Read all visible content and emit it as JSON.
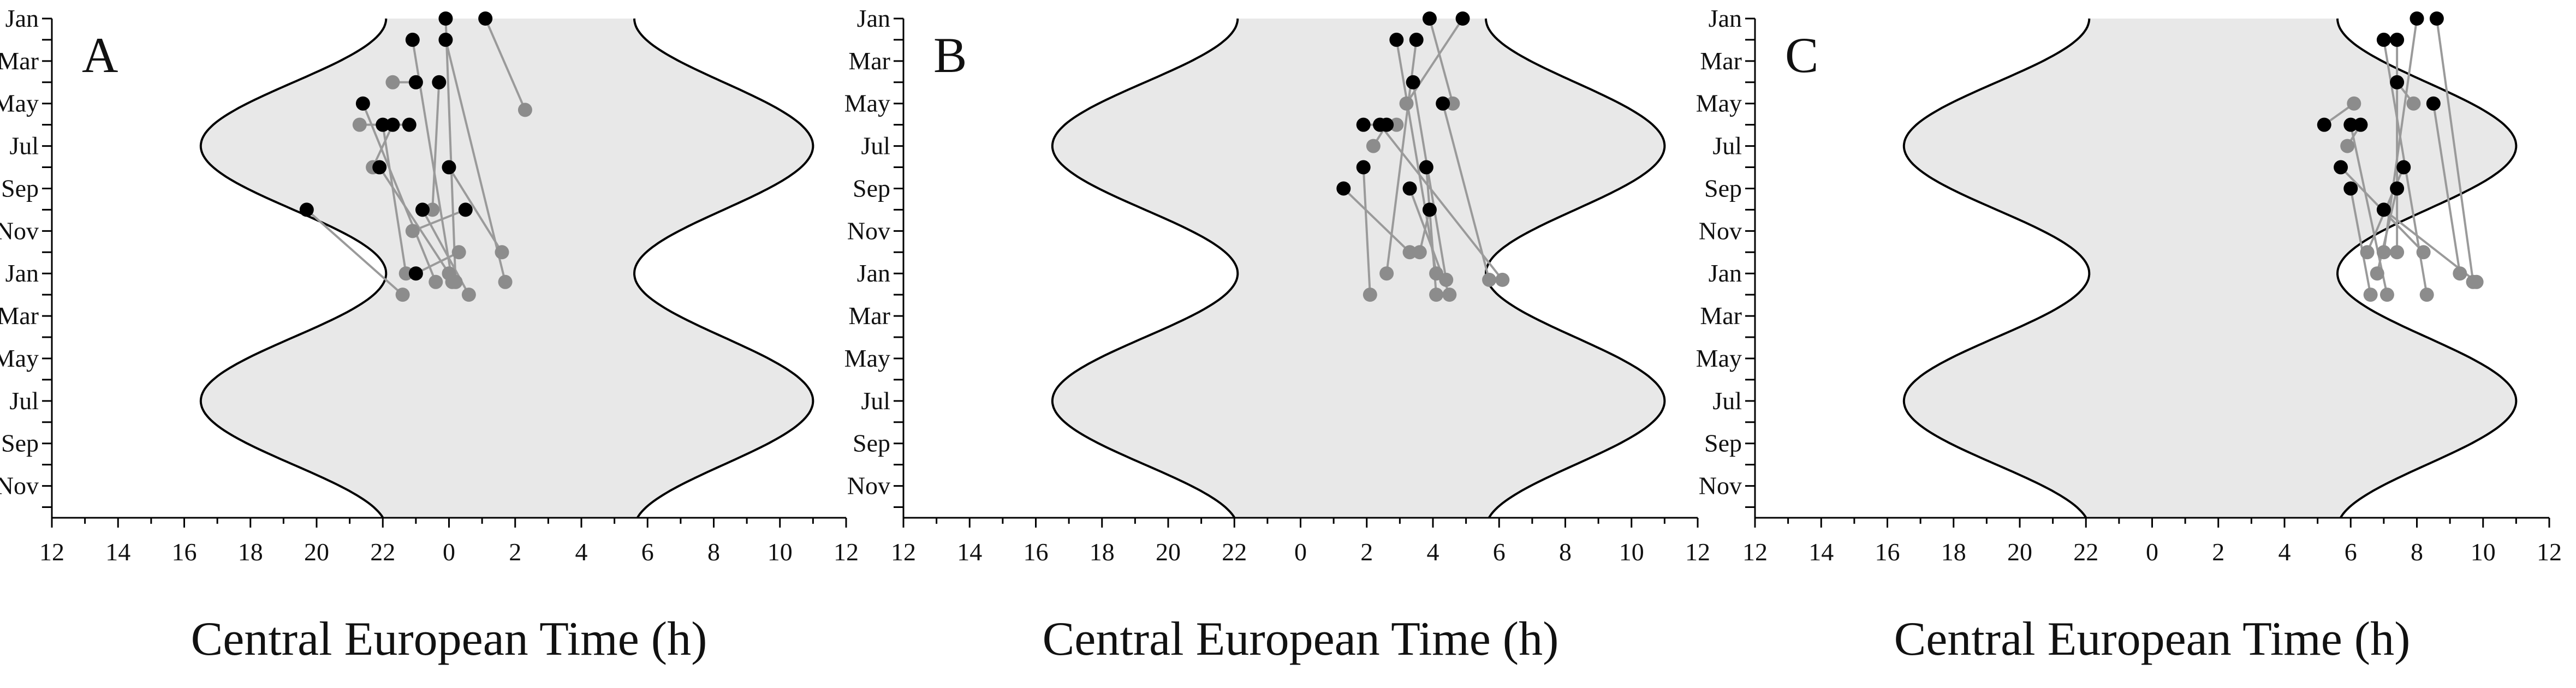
{
  "chart_data": [
    {
      "type": "scatter",
      "panel_label": "A",
      "xlabel": "Central European Time (h)",
      "x_tick_labels": [
        "12",
        "14",
        "16",
        "18",
        "20",
        "22",
        "0",
        "2",
        "4",
        "6",
        "8",
        "10",
        "12"
      ],
      "y_tick_labels": [
        "Jan",
        "Mar",
        "May",
        "Jul",
        "Sep",
        "Nov",
        "Jan",
        "Mar",
        "May",
        "Jul",
        "Sep",
        "Nov"
      ],
      "xlim": [
        12,
        36
      ],
      "ylim_months": [
        0,
        23.5
      ],
      "shading": "night (dusk to dawn) annual cycle",
      "colors": {
        "first_point": "#000000",
        "second_point": "#8c8c8c",
        "connector": "#9a9a9a",
        "night": "#e8e8e8"
      },
      "pairs": [
        {
          "from": [
            25.1,
            0
          ],
          "to": [
            26.3,
            4.3
          ]
        },
        {
          "from": [
            23.9,
            0
          ],
          "to": [
            24.2,
            12.4
          ]
        },
        {
          "from": [
            22.9,
            1.0
          ],
          "to": [
            24.1,
            12.4
          ]
        },
        {
          "from": [
            23.9,
            1.0
          ],
          "to": [
            25.7,
            12.4
          ]
        },
        {
          "from": [
            23.7,
            3.0
          ],
          "to": [
            23.5,
            9.0
          ]
        },
        {
          "from": [
            23.0,
            3.0
          ],
          "to": [
            22.3,
            3.0
          ]
        },
        {
          "from": [
            21.4,
            4.0
          ],
          "to": [
            23.6,
            12.4
          ]
        },
        {
          "from": [
            22.8,
            5.0
          ],
          "to": [
            21.3,
            5.0
          ]
        },
        {
          "from": [
            22.0,
            5.0
          ],
          "to": [
            22.7,
            12.0
          ]
        },
        {
          "from": [
            22.3,
            5.0
          ],
          "to": [
            21.7,
            7.0
          ]
        },
        {
          "from": [
            21.9,
            7.0
          ],
          "to": [
            24.0,
            12.0
          ]
        },
        {
          "from": [
            24.5,
            9.0
          ],
          "to": [
            22.9,
            10.0
          ]
        },
        {
          "from": [
            19.7,
            9.0
          ],
          "to": [
            22.6,
            13.0
          ]
        },
        {
          "from": [
            24.0,
            7.0
          ],
          "to": [
            25.6,
            11.0
          ]
        },
        {
          "from": [
            23.2,
            9.0
          ],
          "to": [
            24.6,
            13.0
          ]
        },
        {
          "from": [
            23.0,
            12.0
          ],
          "to": [
            24.3,
            11.0
          ]
        }
      ]
    },
    {
      "type": "scatter",
      "panel_label": "B",
      "xlabel": "Central European Time (h)",
      "x_tick_labels": [
        "12",
        "14",
        "16",
        "18",
        "20",
        "22",
        "0",
        "2",
        "4",
        "6",
        "8",
        "10",
        "12"
      ],
      "y_tick_labels": [
        "Jan",
        "Mar",
        "May",
        "Jul",
        "Sep",
        "Nov",
        "Jan",
        "Mar",
        "May",
        "Jul",
        "Sep",
        "Nov"
      ],
      "xlim": [
        12,
        36
      ],
      "ylim_months": [
        0,
        23.5
      ],
      "shading": "night (dusk to dawn) annual cycle",
      "colors": {
        "first_point": "#000000",
        "second_point": "#8c8c8c",
        "connector": "#9a9a9a",
        "night": "#e8e8e8"
      },
      "pairs": [
        {
          "from": [
            28.9,
            0
          ],
          "to": [
            27.2,
            4.0
          ]
        },
        {
          "from": [
            27.9,
            0
          ],
          "to": [
            28.6,
            4.0
          ]
        },
        {
          "from": [
            26.9,
            1.0
          ],
          "to": [
            28.1,
            12.0
          ]
        },
        {
          "from": [
            27.5,
            1.0
          ],
          "to": [
            26.6,
            12.0
          ]
        },
        {
          "from": [
            27.4,
            3.0
          ],
          "to": [
            28.4,
            12.3
          ]
        },
        {
          "from": [
            28.3,
            4.0
          ],
          "to": [
            29.7,
            12.3
          ]
        },
        {
          "from": [
            25.9,
            5.0
          ],
          "to": [
            26.9,
            5.0
          ]
        },
        {
          "from": [
            26.6,
            5.0
          ],
          "to": [
            26.2,
            6.0
          ]
        },
        {
          "from": [
            26.4,
            5.0
          ],
          "to": [
            30.1,
            12.3
          ]
        },
        {
          "from": [
            27.8,
            7.0
          ],
          "to": [
            28.1,
            13.0
          ]
        },
        {
          "from": [
            25.9,
            7.0
          ],
          "to": [
            26.1,
            13.0
          ]
        },
        {
          "from": [
            27.3,
            8.0
          ],
          "to": [
            28.5,
            13.0
          ]
        },
        {
          "from": [
            25.3,
            8.0
          ],
          "to": [
            27.3,
            11.0
          ]
        },
        {
          "from": [
            27.9,
            9.0
          ],
          "to": [
            27.6,
            11.0
          ]
        }
      ]
    },
    {
      "type": "scatter",
      "panel_label": "C",
      "xlabel": "Central European Time (h)",
      "x_tick_labels": [
        "12",
        "14",
        "16",
        "18",
        "20",
        "22",
        "0",
        "2",
        "4",
        "6",
        "8",
        "10",
        "12"
      ],
      "y_tick_labels": [
        "Jan",
        "Mar",
        "May",
        "Jul",
        "Sep",
        "Nov",
        "Jan",
        "Mar",
        "May",
        "Jul",
        "Sep",
        "Nov"
      ],
      "xlim": [
        12,
        36
      ],
      "ylim_months": [
        0,
        23.5
      ],
      "shading": "night (dusk to dawn) annual cycle",
      "colors": {
        "first_point": "#000000",
        "second_point": "#8c8c8c",
        "connector": "#9a9a9a",
        "night": "#e8e8e8"
      },
      "pairs": [
        {
          "from": [
            32.0,
            0
          ],
          "to": [
            31.0,
            11.0
          ]
        },
        {
          "from": [
            32.6,
            0
          ],
          "to": [
            33.7,
            12.4
          ]
        },
        {
          "from": [
            31.0,
            1.0
          ],
          "to": [
            32.3,
            13.0
          ]
        },
        {
          "from": [
            31.4,
            1.0
          ],
          "to": [
            31.4,
            11.0
          ]
        },
        {
          "from": [
            31.4,
            3.0
          ],
          "to": [
            31.9,
            4.0
          ]
        },
        {
          "from": [
            32.5,
            4.0
          ],
          "to": [
            33.3,
            12.0
          ]
        },
        {
          "from": [
            29.2,
            5.0
          ],
          "to": [
            30.1,
            4.0
          ]
        },
        {
          "from": [
            30.0,
            5.0
          ],
          "to": [
            31.1,
            13.0
          ]
        },
        {
          "from": [
            30.3,
            5.0
          ],
          "to": [
            29.9,
            6.0
          ]
        },
        {
          "from": [
            29.7,
            7.0
          ],
          "to": [
            32.2,
            11.0
          ]
        },
        {
          "from": [
            31.6,
            7.0
          ],
          "to": [
            30.5,
            11.0
          ]
        },
        {
          "from": [
            31.4,
            8.0
          ],
          "to": [
            30.8,
            12.0
          ]
        },
        {
          "from": [
            30.0,
            8.0
          ],
          "to": [
            30.6,
            13.0
          ]
        },
        {
          "from": [
            31.0,
            9.0
          ],
          "to": [
            33.8,
            12.4
          ]
        }
      ]
    }
  ]
}
